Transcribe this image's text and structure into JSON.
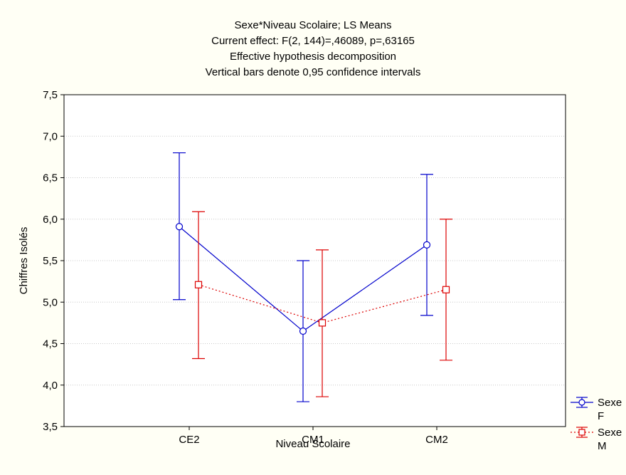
{
  "chart_data": {
    "type": "line",
    "title_lines": [
      "Sexe*Niveau Scolaire; LS Means",
      "Current effect: F(2, 144)=,46089, p=,63165",
      "Effective hypothesis decomposition",
      "Vertical bars denote 0,95 confidence intervals"
    ],
    "xlabel": "Niveau Scolaire",
    "ylabel": "Chiffres Isolés",
    "categories": [
      "CE2",
      "CM1",
      "CM2"
    ],
    "ylim": [
      3.5,
      7.5
    ],
    "yticks": [
      "3,5",
      "4,0",
      "4,5",
      "5,0",
      "5,5",
      "6,0",
      "6,5",
      "7,0",
      "7,5"
    ],
    "grid": true,
    "legend_position": "bottom-right",
    "series": [
      {
        "name": "Sexe F",
        "legend_lines": [
          "Sexe",
          "F"
        ],
        "color": "#0000cc",
        "marker": "circle",
        "line_style": "solid",
        "values": [
          5.91,
          4.65,
          5.69
        ],
        "ci_low": [
          5.03,
          3.8,
          4.84
        ],
        "ci_high": [
          6.8,
          5.5,
          6.54
        ]
      },
      {
        "name": "Sexe M",
        "legend_lines": [
          "Sexe",
          "M"
        ],
        "color": "#dd0000",
        "marker": "square",
        "line_style": "dotted",
        "values": [
          5.21,
          4.75,
          5.15
        ],
        "ci_low": [
          4.32,
          3.86,
          4.3
        ],
        "ci_high": [
          6.09,
          5.63,
          6.0
        ]
      }
    ]
  }
}
